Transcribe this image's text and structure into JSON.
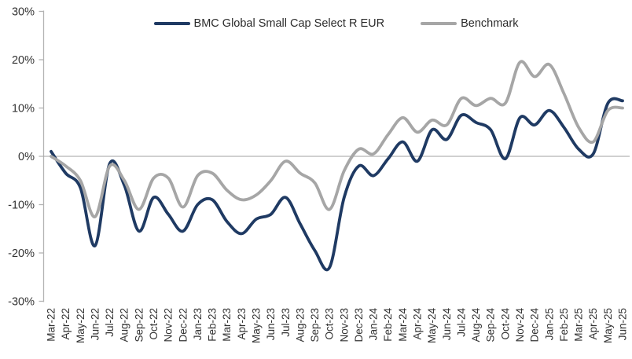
{
  "chart_data": {
    "type": "line",
    "title": "",
    "xlabel": "",
    "ylabel": "",
    "ylim": [
      -30,
      30
    ],
    "ytick_step": 10,
    "ytick_labels": [
      "30%",
      "20%",
      "10%",
      "0%",
      "-10%",
      "-20%",
      "-30%"
    ],
    "grid": "zero-line-only",
    "legend_position": "top-center",
    "categories": [
      "Mar-22",
      "Apr-22",
      "May-22",
      "Jun-22",
      "Jul-22",
      "Aug-22",
      "Sep-22",
      "Oct-22",
      "Nov-22",
      "Dec-22",
      "Jan-23",
      "Feb-23",
      "Mar-23",
      "Apr-23",
      "May-23",
      "Jun-23",
      "Jul-23",
      "Aug-23",
      "Sep-23",
      "Oct-23",
      "Nov-23",
      "Dec-23",
      "Jan-24",
      "Feb-24",
      "Mar-24",
      "Apr-24",
      "May-24",
      "Jun-24",
      "Jul-24",
      "Aug-24",
      "Sep-24",
      "Oct-24",
      "Nov-24",
      "Dec-24",
      "Jan-25",
      "Feb-25",
      "Mar-25",
      "Apr-25",
      "May-25",
      "Jun-25"
    ],
    "series": [
      {
        "name": "BMC Global Small Cap Select R EUR",
        "color": "#1f3a63",
        "values": [
          1,
          -3.5,
          -6.5,
          -18.5,
          -1.5,
          -6,
          -15.5,
          -8.5,
          -12,
          -15.5,
          -10,
          -9,
          -13.5,
          -16,
          -13,
          -12,
          -8.5,
          -14,
          -19.5,
          -23,
          -8.5,
          -2,
          -4,
          -0.5,
          3,
          -1,
          5.5,
          3.5,
          8.5,
          7,
          5.5,
          -0.5,
          8,
          6.5,
          9.5,
          6,
          1.5,
          0.5,
          11,
          11.5
        ]
      },
      {
        "name": "Benchmark",
        "color": "#a6a6a6",
        "values": [
          0,
          -2,
          -5,
          -12.5,
          -2,
          -5,
          -11,
          -4.5,
          -4.5,
          -10.5,
          -4,
          -3.5,
          -7,
          -9,
          -8,
          -5,
          -1,
          -3.5,
          -5.5,
          -11,
          -3,
          1.5,
          0.5,
          4.5,
          8,
          5,
          7.5,
          6.5,
          12,
          10.5,
          12,
          11,
          19.5,
          16.5,
          19,
          13,
          6,
          3,
          9.5,
          10
        ]
      }
    ]
  },
  "colors": {
    "fund_line": "#1f3a63",
    "benchmark_line": "#a6a6a6",
    "axis_line": "#b3b3b3",
    "zero_line": "#a0a0a0",
    "tick_text": "#333333",
    "background": "#ffffff"
  }
}
